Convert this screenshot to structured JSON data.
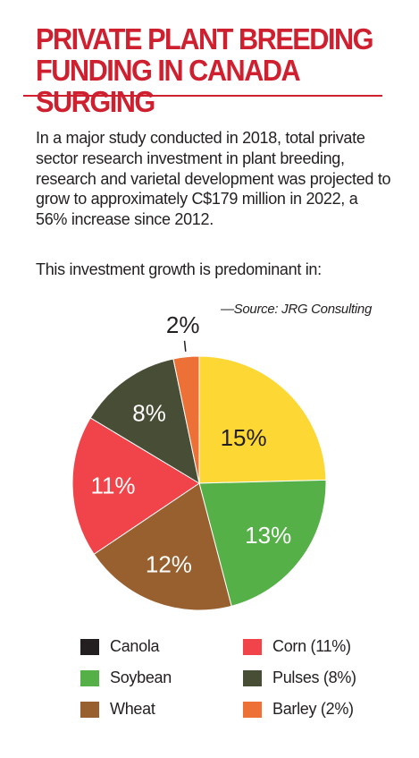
{
  "header": {
    "title_line1": "PRIVATE PLANT BREEDING",
    "title_line2": "FUNDING IN CANADA SURGING"
  },
  "body": {
    "paragraph1": "In a major study conducted in 2018, total private sector research investment in plant breeding, research and varietal development was projected to grow to approximately C$179 million in 2022, a 56% increase since 2012.",
    "paragraph2": "This investment growth is predominant in:",
    "source": "—Source: JRG Consulting"
  },
  "colors": {
    "title": "#cf2030",
    "canola": "#231f20",
    "soybean": "#55b047",
    "wheat": "#99602f",
    "corn": "#f0444a",
    "pulses": "#484d35",
    "barley": "#ed7036",
    "yellow_slice": "#fdd835"
  },
  "chart_data": {
    "type": "pie",
    "title": "",
    "slices": [
      {
        "label": "15%",
        "value": 15,
        "color": "#fdd835"
      },
      {
        "label": "13%",
        "value": 13,
        "color": "#55b047"
      },
      {
        "label": "12%",
        "value": 12,
        "color": "#99602f"
      },
      {
        "label": "11%",
        "value": 11,
        "color": "#f0444a"
      },
      {
        "label": "8%",
        "value": 8,
        "color": "#484d35"
      },
      {
        "label": "2%",
        "value": 2,
        "color": "#ed7036"
      }
    ],
    "legend": [
      {
        "label": "Canola",
        "color": "#231f20"
      },
      {
        "label": "Corn (11%)",
        "color": "#f0444a"
      },
      {
        "label": "Soybean",
        "color": "#55b047"
      },
      {
        "label": "Pulses (8%)",
        "color": "#484d35"
      },
      {
        "label": "Wheat",
        "color": "#99602f"
      },
      {
        "label": "Barley (2%)",
        "color": "#ed7036"
      }
    ]
  }
}
